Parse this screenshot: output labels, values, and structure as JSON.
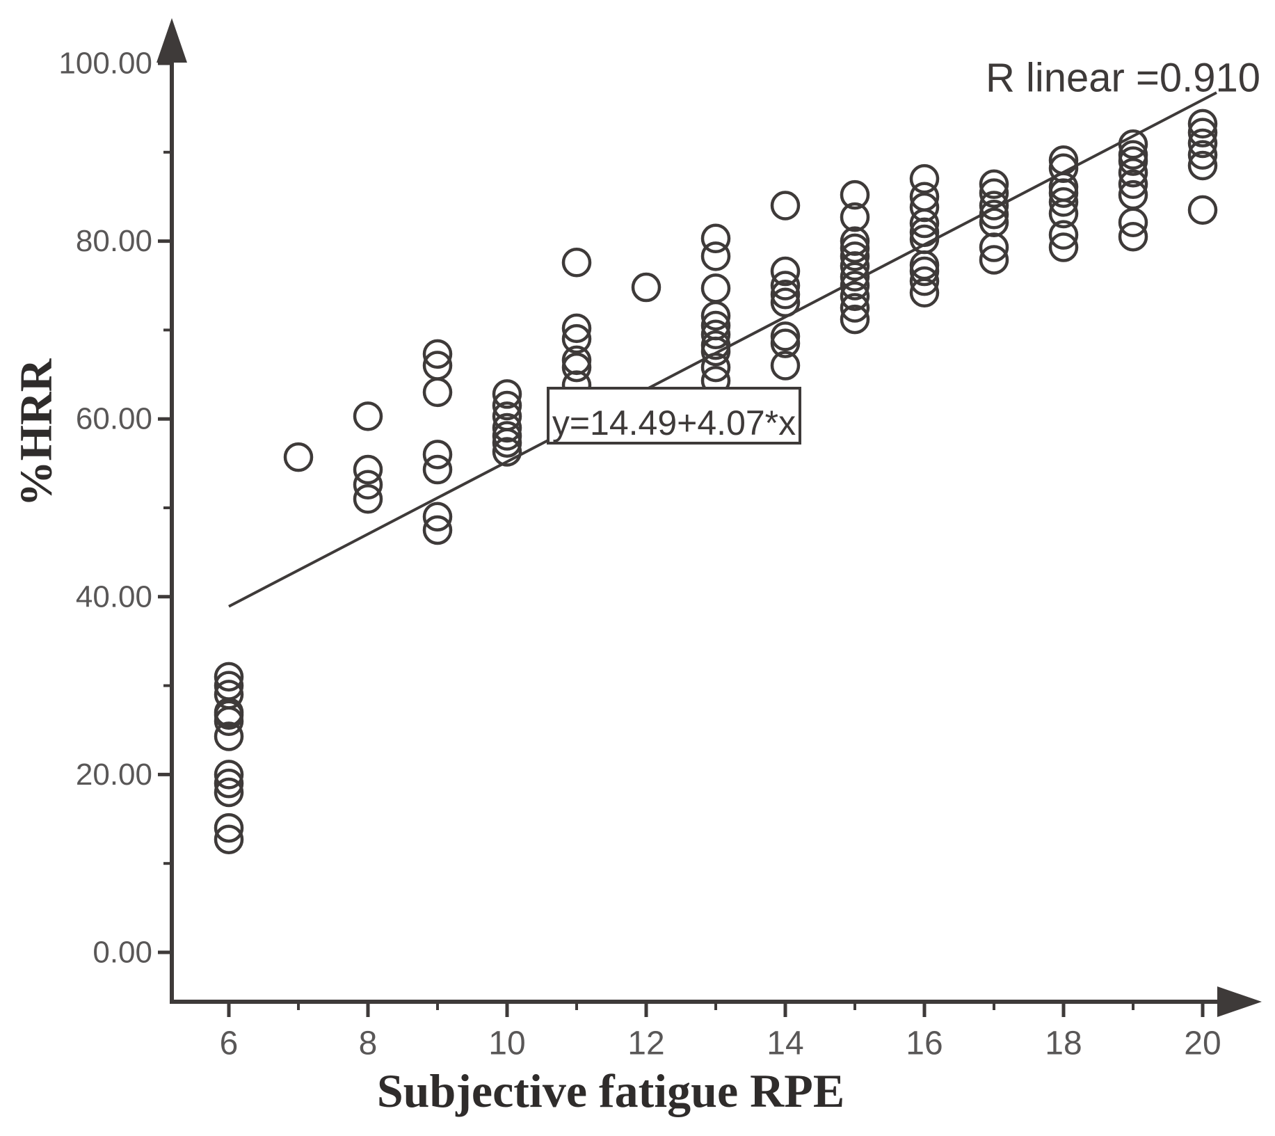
{
  "chart_data": {
    "type": "scatter",
    "title": "",
    "xlabel": "Subjective fatigue RPE",
    "ylabel": "%HRR",
    "xlim": [
      5.2,
      20.8
    ],
    "ylim": [
      -5.5,
      105
    ],
    "grid": "off",
    "legend": "none",
    "marker": {
      "shape": "open-circle",
      "radius_px": 19,
      "color": "#3e3a39"
    },
    "x_ticks_major": [
      6,
      8,
      10,
      12,
      14,
      16,
      18,
      20
    ],
    "x_tick_labels": [
      "6",
      "8",
      "10",
      "12",
      "14",
      "16",
      "18",
      "20"
    ],
    "x_ticks_minor": [
      7,
      9,
      11,
      13,
      15,
      17,
      19
    ],
    "y_ticks_major": [
      0,
      20,
      40,
      60,
      80,
      100
    ],
    "y_tick_labels": [
      "0.00",
      "20.00",
      "40.00",
      "60.00",
      "80.00",
      "100.00"
    ],
    "y_ticks_minor": [
      10,
      30,
      50,
      70,
      90
    ],
    "r_annotation": "R linear =0.910",
    "regression": {
      "equation": "y=14.49+4.07*x",
      "intercept": 14.49,
      "slope": 4.07,
      "r": 0.91,
      "x_start": 6,
      "x_end": 20.2
    },
    "series": [
      {
        "x": 6,
        "y_values": [
          31,
          30,
          29,
          27,
          26.7,
          26,
          24.3,
          20,
          19,
          18,
          14,
          12.7
        ]
      },
      {
        "x": 7,
        "y_values": [
          55.7
        ]
      },
      {
        "x": 8,
        "y_values": [
          60.3,
          54.3,
          52.6,
          51
        ]
      },
      {
        "x": 9,
        "y_values": [
          67.3,
          66,
          63,
          56,
          54.3,
          49,
          47.5
        ]
      },
      {
        "x": 10,
        "y_values": [
          62.8,
          61.5,
          60.3,
          59,
          58.1,
          57.3,
          56.3
        ]
      },
      {
        "x": 11,
        "y_values": [
          77.6,
          70.2,
          69,
          66.6,
          65.8,
          63.8
        ]
      },
      {
        "x": 12,
        "y_values": [
          74.8
        ]
      },
      {
        "x": 13,
        "y_values": [
          80.3,
          78.3,
          74.7,
          71.6,
          70.5,
          69.5,
          68.3,
          67.6,
          65.8,
          64.3
        ]
      },
      {
        "x": 14,
        "y_values": [
          84,
          76.6,
          75,
          74,
          73.1,
          69.3,
          68.5,
          66
        ]
      },
      {
        "x": 15,
        "y_values": [
          85.2,
          82.7,
          80,
          79.2,
          78.3,
          77.2,
          76,
          75,
          73.8,
          72.5,
          71.2
        ]
      },
      {
        "x": 16,
        "y_values": [
          87,
          85,
          83.8,
          82,
          81,
          80.2,
          77.3,
          76.6,
          75.5,
          74.2
        ]
      },
      {
        "x": 17,
        "y_values": [
          86.4,
          85.4,
          84,
          83,
          82.1,
          79.3,
          77.9
        ]
      },
      {
        "x": 18,
        "y_values": [
          89.1,
          88.2,
          86.1,
          85.4,
          84.4,
          83.1,
          80.7,
          79.3
        ]
      },
      {
        "x": 19,
        "y_values": [
          90.9,
          89.7,
          89,
          87.7,
          86.4,
          85.2,
          82.1,
          80.5
        ]
      },
      {
        "x": 20,
        "y_values": [
          93.2,
          92.2,
          91,
          89.7,
          88.5,
          83.5
        ]
      }
    ]
  }
}
